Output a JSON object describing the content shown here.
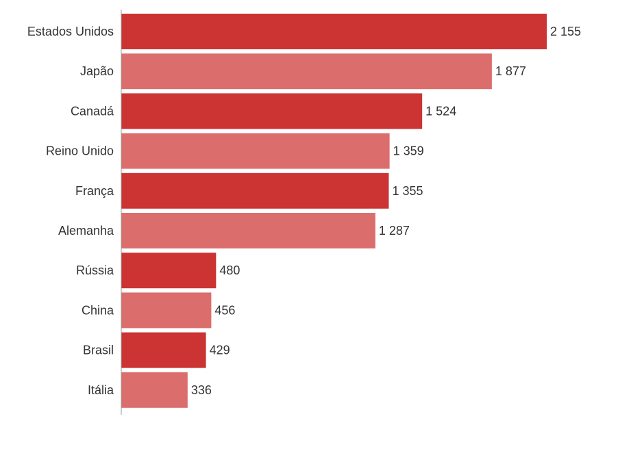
{
  "chart_data": {
    "type": "bar",
    "orientation": "horizontal",
    "categories": [
      "Estados Unidos",
      "Japão",
      "Canadá",
      "Reino Unido",
      "França",
      "Alemanha",
      "Rússia",
      "China",
      "Brasil",
      "Itália"
    ],
    "values": [
      2155,
      1877,
      1524,
      1359,
      1355,
      1287,
      480,
      456,
      429,
      336
    ],
    "value_labels": [
      "2 155",
      "1 877",
      "1 524",
      "1 359",
      "1 355",
      "1 287",
      "480",
      "456",
      "429",
      "336"
    ],
    "title": "",
    "xlabel": "",
    "ylabel": "",
    "xlim": [
      0,
      2155
    ],
    "grid": false,
    "legend": false,
    "colors": {
      "primary": "#cc3333",
      "secondary": "#dc6d6d",
      "axis": "#999999",
      "text": "#333333"
    },
    "color_pattern": "alternating"
  }
}
